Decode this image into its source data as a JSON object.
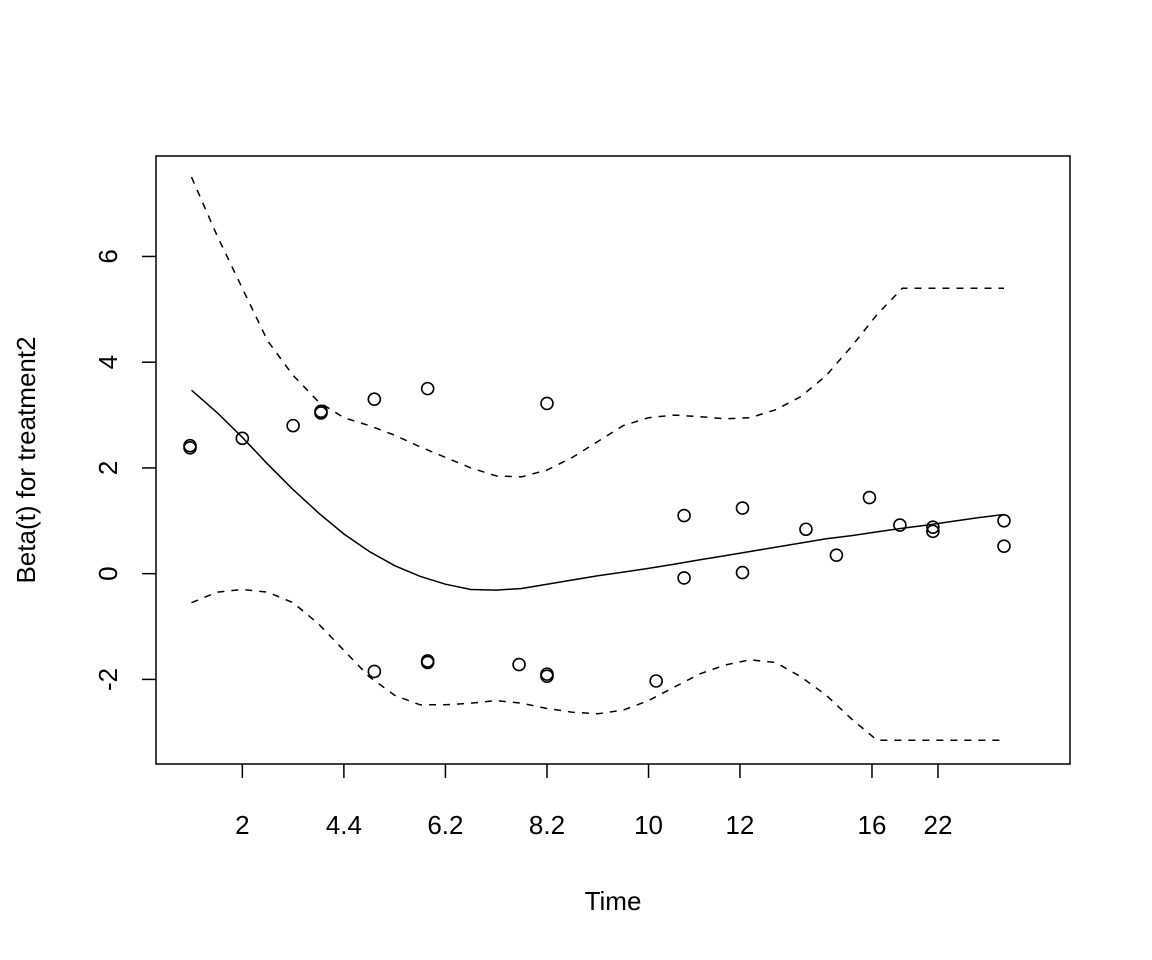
{
  "chart_data": {
    "type": "line",
    "xlabel": "Time",
    "ylabel": "Beta(t) for treatment2",
    "x_tick_labels": [
      "2",
      "4.4",
      "6.2",
      "8.2",
      "10",
      "12",
      "16",
      "22"
    ],
    "x_tick_positions": [
      2,
      4,
      6,
      8,
      10,
      11.8,
      14.4,
      15.7
    ],
    "xlim": [
      0.3,
      18.3
    ],
    "ylim": [
      -3.6,
      7.9
    ],
    "y_ticks": [
      -2,
      0,
      2,
      4,
      6
    ],
    "y_tick_labels": [
      "-2",
      "0",
      "2",
      "4",
      "6"
    ],
    "grid": false,
    "series": [
      {
        "style": "solid",
        "x": [
          1.0,
          1.5,
          2.0,
          2.5,
          3.0,
          3.5,
          4.0,
          4.5,
          5.0,
          5.5,
          6.0,
          6.5,
          7.0,
          7.5,
          8.0,
          8.5,
          9.0,
          9.5,
          10.0,
          10.5,
          11.0,
          11.5,
          12.0,
          12.5,
          13.0,
          13.5,
          14.0,
          14.5,
          15.0,
          15.5,
          16.0,
          16.5,
          17.0
        ],
        "y": [
          3.47,
          3.05,
          2.58,
          2.07,
          1.59,
          1.15,
          0.75,
          0.42,
          0.15,
          -0.05,
          -0.2,
          -0.3,
          -0.31,
          -0.28,
          -0.2,
          -0.12,
          -0.04,
          0.03,
          0.1,
          0.18,
          0.26,
          0.34,
          0.42,
          0.5,
          0.58,
          0.66,
          0.72,
          0.79,
          0.86,
          0.92,
          0.99,
          1.06,
          1.12
        ]
      },
      {
        "style": "dashed",
        "x": [
          1.0,
          1.5,
          2.0,
          2.5,
          3.0,
          3.5,
          4.0,
          4.5,
          5.0,
          5.5,
          6.0,
          6.5,
          7.0,
          7.5,
          8.0,
          8.5,
          9.0,
          9.5,
          10.0,
          10.5,
          11.0,
          11.5,
          12.0,
          12.5,
          13.0,
          13.5,
          14.0,
          14.5,
          15.0,
          15.5,
          16.0,
          16.5,
          17.0
        ],
        "y": [
          7.5,
          6.4,
          5.4,
          4.4,
          3.75,
          3.25,
          2.95,
          2.8,
          2.62,
          2.4,
          2.2,
          2.0,
          1.85,
          1.83,
          1.96,
          2.2,
          2.5,
          2.8,
          2.95,
          3.0,
          2.97,
          2.93,
          2.95,
          3.1,
          3.35,
          3.75,
          4.3,
          4.9,
          5.4,
          5.4,
          5.4,
          5.4,
          5.4
        ]
      },
      {
        "style": "dashed",
        "x": [
          1.0,
          1.5,
          2.0,
          2.5,
          3.0,
          3.5,
          4.0,
          4.5,
          5.0,
          5.5,
          6.0,
          6.5,
          7.0,
          7.5,
          8.0,
          8.5,
          9.0,
          9.5,
          10.0,
          10.5,
          11.0,
          11.5,
          12.0,
          12.5,
          13.0,
          13.5,
          14.0,
          14.5,
          15.0,
          15.5,
          16.0,
          16.5,
          17.0
        ],
        "y": [
          -0.55,
          -0.35,
          -0.3,
          -0.35,
          -0.55,
          -0.95,
          -1.45,
          -1.95,
          -2.3,
          -2.48,
          -2.48,
          -2.45,
          -2.4,
          -2.45,
          -2.55,
          -2.62,
          -2.65,
          -2.58,
          -2.4,
          -2.15,
          -1.9,
          -1.73,
          -1.63,
          -1.68,
          -1.95,
          -2.3,
          -2.75,
          -3.15,
          -3.15,
          -3.15,
          -3.15,
          -3.15,
          -3.15
        ]
      }
    ],
    "points": [
      {
        "x": 0.97,
        "y": 2.38
      },
      {
        "x": 0.97,
        "y": 2.42
      },
      {
        "x": 2.0,
        "y": 2.56
      },
      {
        "x": 3.0,
        "y": 2.8
      },
      {
        "x": 3.55,
        "y": 3.04
      },
      {
        "x": 3.55,
        "y": 3.07
      },
      {
        "x": 4.6,
        "y": 3.3
      },
      {
        "x": 4.6,
        "y": -1.85
      },
      {
        "x": 5.65,
        "y": 3.5
      },
      {
        "x": 5.65,
        "y": -1.65
      },
      {
        "x": 5.65,
        "y": -1.68
      },
      {
        "x": 7.45,
        "y": -1.72
      },
      {
        "x": 8.0,
        "y": 3.22
      },
      {
        "x": 8.0,
        "y": -1.9
      },
      {
        "x": 8.0,
        "y": -1.94
      },
      {
        "x": 10.15,
        "y": -2.03
      },
      {
        "x": 10.7,
        "y": 1.1
      },
      {
        "x": 10.7,
        "y": -0.08
      },
      {
        "x": 11.85,
        "y": 1.24
      },
      {
        "x": 11.85,
        "y": 0.02
      },
      {
        "x": 13.1,
        "y": 0.84
      },
      {
        "x": 13.7,
        "y": 0.35
      },
      {
        "x": 14.35,
        "y": 1.44
      },
      {
        "x": 14.95,
        "y": 0.92
      },
      {
        "x": 15.6,
        "y": 0.88
      },
      {
        "x": 15.6,
        "y": 0.8
      },
      {
        "x": 17.0,
        "y": 1.0
      },
      {
        "x": 17.0,
        "y": 0.52
      }
    ]
  }
}
